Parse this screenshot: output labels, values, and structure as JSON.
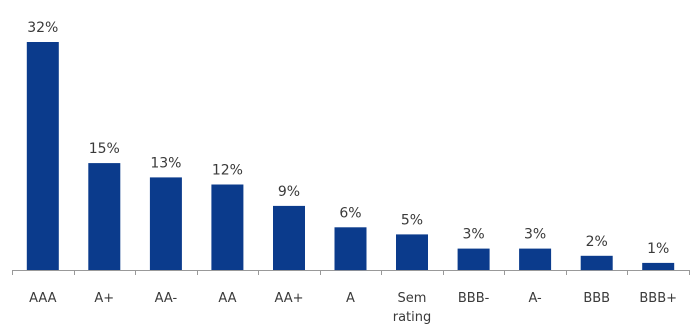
{
  "chart_data": {
    "type": "bar",
    "title": "",
    "xlabel": "",
    "ylabel": "",
    "ylim": [
      0,
      32
    ],
    "grid": false,
    "legend": "none",
    "categories": [
      "AAA",
      "A+",
      "AA-",
      "AA",
      "AA+",
      "A",
      "Sem rating",
      "BBB-",
      "A-",
      "BBB",
      "BBB+"
    ],
    "values": [
      32,
      15,
      13,
      12,
      9,
      6,
      5,
      3,
      3,
      2,
      1
    ],
    "value_labels": [
      "32%",
      "15%",
      "13%",
      "12%",
      "9%",
      "6%",
      "5%",
      "3%",
      "3%",
      "2%",
      "1%"
    ],
    "bar_color": "#0b3b8c",
    "axis_color": "#999999"
  }
}
